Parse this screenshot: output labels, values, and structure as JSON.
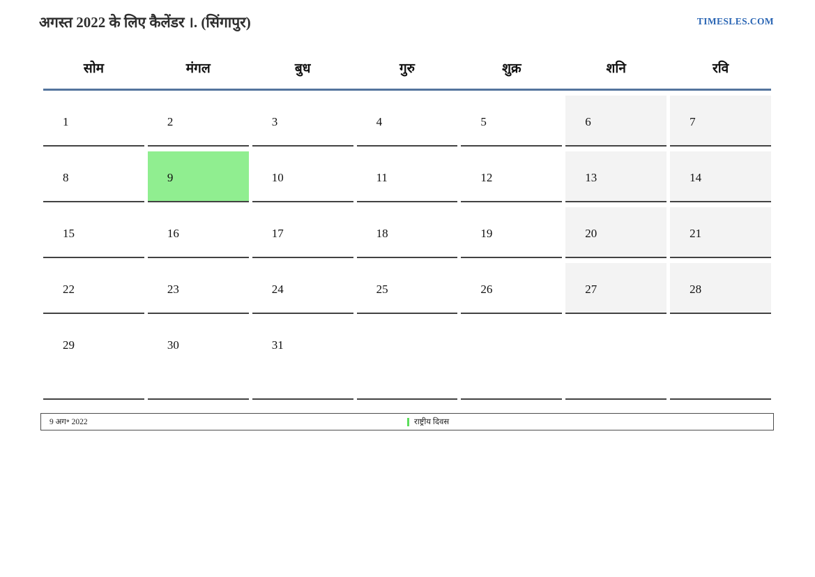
{
  "header": {
    "title": "अगस्त 2022 के लिए कैलेंडर ।. (सिंगापुर)",
    "site_link": "TIMESLES.COM"
  },
  "calendar": {
    "day_headers": [
      "सोम",
      "मंगल",
      "बुध",
      "गुरु",
      "शुक्र",
      "शनि",
      "रवि"
    ],
    "weeks": [
      [
        "1",
        "2",
        "3",
        "4",
        "5",
        "6",
        "7"
      ],
      [
        "8",
        "9",
        "10",
        "11",
        "12",
        "13",
        "14"
      ],
      [
        "15",
        "16",
        "17",
        "18",
        "19",
        "20",
        "21"
      ],
      [
        "22",
        "23",
        "24",
        "25",
        "26",
        "27",
        "28"
      ],
      [
        "29",
        "30",
        "31",
        "",
        "",
        "",
        ""
      ]
    ],
    "weekend_columns": [
      5,
      6
    ],
    "highlighted_date": "9",
    "colors": {
      "highlight": "#90ee90",
      "weekend_bg": "#f3f3f3",
      "header_line": "#54749e",
      "cell_border": "#424242"
    }
  },
  "legend": {
    "date": "9 अग॰ 2022",
    "items": [
      {
        "label": "राष्ट्रीय दिवस",
        "color": "#5cdd5c"
      }
    ]
  }
}
